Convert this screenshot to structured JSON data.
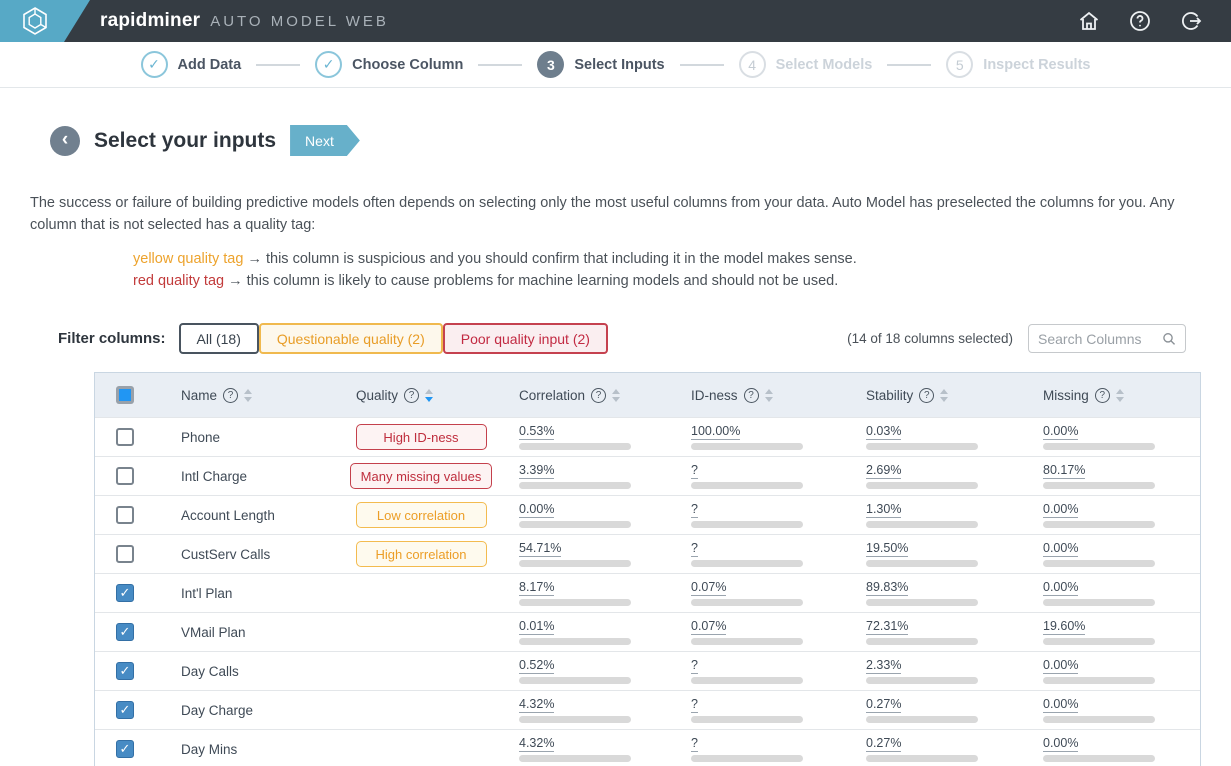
{
  "topbar": {
    "brand": "rapidminer",
    "product": "AUTO MODEL WEB",
    "icons": [
      "home-icon",
      "help-icon",
      "logout-icon"
    ]
  },
  "stepper": {
    "steps": [
      {
        "num": "1",
        "label": "Add Data",
        "state": "done"
      },
      {
        "num": "2",
        "label": "Choose Column",
        "state": "done"
      },
      {
        "num": "3",
        "label": "Select Inputs",
        "state": "active"
      },
      {
        "num": "4",
        "label": "Select Models",
        "state": "upcoming"
      },
      {
        "num": "5",
        "label": "Inspect Results",
        "state": "upcoming"
      }
    ],
    "done_glyph": "✓"
  },
  "header": {
    "back_glyph": "‹",
    "title": "Select your inputs",
    "next_label": "Next"
  },
  "intro": {
    "paragraph": "The success or failure of building predictive models often depends on selecting only the most useful columns from your data. Auto Model has preselected the columns for you. Any column that is not selected has a quality tag:",
    "tags": [
      {
        "name": "yellow quality tag",
        "type": "yellow",
        "desc": "→ this column is suspicious and you should confirm that including it in the model makes sense."
      },
      {
        "name": "red quality tag",
        "type": "red",
        "desc": "→ this column is likely to cause problems for machine learning models and should not be used."
      }
    ]
  },
  "filter": {
    "label": "Filter columns:",
    "buttons": [
      {
        "label": "All (18)",
        "type": "all"
      },
      {
        "label": "Questionable quality (2)",
        "type": "yellow"
      },
      {
        "label": "Poor quality input (2)",
        "type": "red"
      }
    ],
    "selection_summary": "(14 of 18 columns selected)",
    "search_placeholder": "Search Columns"
  },
  "table": {
    "header_checkbox_state": "indeterminate",
    "columns": [
      {
        "key": "name",
        "label": "Name",
        "sort": "none"
      },
      {
        "key": "quality",
        "label": "Quality",
        "sort": "desc"
      },
      {
        "key": "correlation",
        "label": "Correlation",
        "sort": "none"
      },
      {
        "key": "idness",
        "label": "ID-ness",
        "sort": "none"
      },
      {
        "key": "stability",
        "label": "Stability",
        "sort": "none"
      },
      {
        "key": "missing",
        "label": "Missing",
        "sort": "none"
      }
    ],
    "bar_colors": {
      "red": "#b51423",
      "slate": "#5d6b7a",
      "track": "#d9d9d9"
    },
    "rows": [
      {
        "name": "Phone",
        "checked": false,
        "badge": {
          "label": "High ID-ness",
          "type": "red"
        },
        "correlation": {
          "value": "0.53%",
          "pct": 0.53,
          "fill": "slate"
        },
        "idness": {
          "value": "100.00%",
          "pct": 100,
          "fill": "red"
        },
        "stability": {
          "value": "0.03%",
          "pct": 0.03,
          "fill": "slate"
        },
        "missing": {
          "value": "0.00%",
          "pct": 0,
          "fill": "slate"
        }
      },
      {
        "name": "Intl Charge",
        "checked": false,
        "badge": {
          "label": "Many missing values",
          "type": "red"
        },
        "correlation": {
          "value": "3.39%",
          "pct": 3.39,
          "fill": "slate"
        },
        "idness": {
          "value": "?",
          "pct": 0,
          "fill": "slate"
        },
        "stability": {
          "value": "2.69%",
          "pct": 2.69,
          "fill": "slate"
        },
        "missing": {
          "value": "80.17%",
          "pct": 80.17,
          "fill": "red"
        }
      },
      {
        "name": "Account Length",
        "checked": false,
        "badge": {
          "label": "Low correlation",
          "type": "yellow"
        },
        "correlation": {
          "value": "0.00%",
          "pct": 0,
          "fill": "slate"
        },
        "idness": {
          "value": "?",
          "pct": 0,
          "fill": "slate"
        },
        "stability": {
          "value": "1.30%",
          "pct": 1.3,
          "fill": "slate"
        },
        "missing": {
          "value": "0.00%",
          "pct": 0,
          "fill": "slate"
        }
      },
      {
        "name": "CustServ Calls",
        "checked": false,
        "badge": {
          "label": "High correlation",
          "type": "yellow"
        },
        "correlation": {
          "value": "54.71%",
          "pct": 54.71,
          "fill": "red"
        },
        "idness": {
          "value": "?",
          "pct": 0,
          "fill": "slate"
        },
        "stability": {
          "value": "19.50%",
          "pct": 19.5,
          "fill": "slate"
        },
        "missing": {
          "value": "0.00%",
          "pct": 0,
          "fill": "slate"
        }
      },
      {
        "name": "Int'l Plan",
        "checked": true,
        "badge": null,
        "correlation": {
          "value": "8.17%",
          "pct": 8.17,
          "fill": "slate"
        },
        "idness": {
          "value": "0.07%",
          "pct": 0.07,
          "fill": "slate"
        },
        "stability": {
          "value": "89.83%",
          "pct": 89.83,
          "fill": "slate"
        },
        "missing": {
          "value": "0.00%",
          "pct": 0,
          "fill": "slate"
        }
      },
      {
        "name": "VMail Plan",
        "checked": true,
        "badge": null,
        "correlation": {
          "value": "0.01%",
          "pct": 0.01,
          "fill": "slate"
        },
        "idness": {
          "value": "0.07%",
          "pct": 0.07,
          "fill": "slate"
        },
        "stability": {
          "value": "72.31%",
          "pct": 72.31,
          "fill": "slate"
        },
        "missing": {
          "value": "19.60%",
          "pct": 19.6,
          "fill": "slate"
        }
      },
      {
        "name": "Day Calls",
        "checked": true,
        "badge": null,
        "correlation": {
          "value": "0.52%",
          "pct": 0.52,
          "fill": "slate"
        },
        "idness": {
          "value": "?",
          "pct": 0,
          "fill": "slate"
        },
        "stability": {
          "value": "2.33%",
          "pct": 2.33,
          "fill": "slate"
        },
        "missing": {
          "value": "0.00%",
          "pct": 0,
          "fill": "slate"
        }
      },
      {
        "name": "Day Charge",
        "checked": true,
        "badge": null,
        "correlation": {
          "value": "4.32%",
          "pct": 4.32,
          "fill": "slate"
        },
        "idness": {
          "value": "?",
          "pct": 0,
          "fill": "slate"
        },
        "stability": {
          "value": "0.27%",
          "pct": 0.27,
          "fill": "slate"
        },
        "missing": {
          "value": "0.00%",
          "pct": 0,
          "fill": "slate"
        }
      },
      {
        "name": "Day Mins",
        "checked": true,
        "badge": null,
        "correlation": {
          "value": "4.32%",
          "pct": 4.32,
          "fill": "slate"
        },
        "idness": {
          "value": "?",
          "pct": 0,
          "fill": "slate"
        },
        "stability": {
          "value": "0.27%",
          "pct": 0.27,
          "fill": "slate"
        },
        "missing": {
          "value": "0.00%",
          "pct": 0,
          "fill": "slate"
        }
      }
    ]
  }
}
